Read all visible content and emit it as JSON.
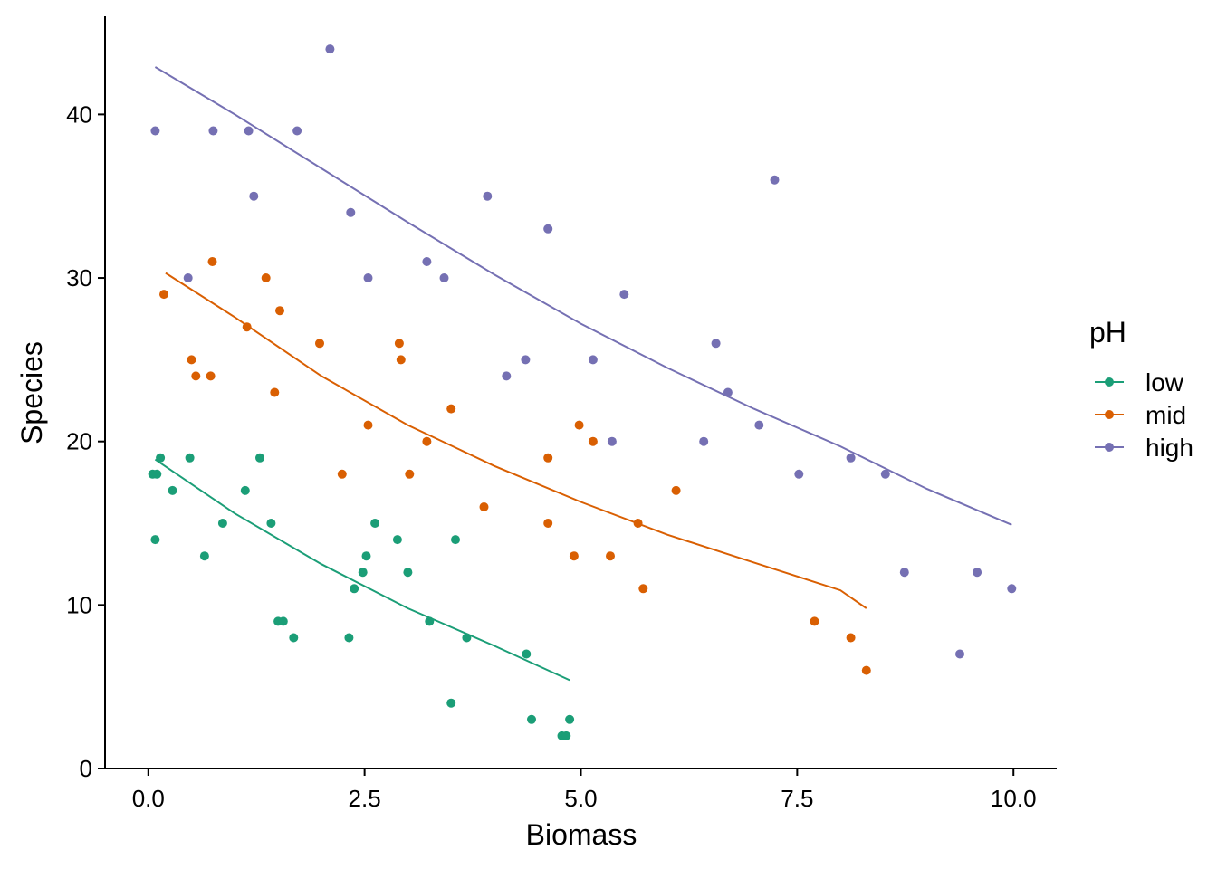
{
  "chart_data": {
    "type": "scatter",
    "xlabel": "Biomass",
    "ylabel": "Species",
    "xlim": [
      -0.5,
      10.5
    ],
    "ylim": [
      0,
      46
    ],
    "xticks": [
      0.0,
      2.5,
      5.0,
      7.5,
      10.0
    ],
    "xtick_labels": [
      "0.0",
      "2.5",
      "5.0",
      "7.5",
      "10.0"
    ],
    "yticks": [
      0,
      10,
      20,
      30,
      40
    ],
    "ytick_labels": [
      "0",
      "10",
      "20",
      "30",
      "40"
    ],
    "grid": false,
    "legend": {
      "title": "pH",
      "placement": "right"
    },
    "series": [
      {
        "name": "low",
        "color": "#1b9e77",
        "points": [
          [
            0.05,
            18
          ],
          [
            0.1,
            18
          ],
          [
            0.08,
            14
          ],
          [
            0.14,
            19
          ],
          [
            0.28,
            17
          ],
          [
            0.48,
            19
          ],
          [
            0.65,
            13
          ],
          [
            0.86,
            15
          ],
          [
            1.12,
            17
          ],
          [
            1.29,
            19
          ],
          [
            1.42,
            15
          ],
          [
            1.5,
            9
          ],
          [
            1.56,
            9
          ],
          [
            1.68,
            8
          ],
          [
            2.32,
            8
          ],
          [
            2.38,
            11
          ],
          [
            2.48,
            12
          ],
          [
            2.52,
            13
          ],
          [
            2.62,
            15
          ],
          [
            2.88,
            14
          ],
          [
            3.0,
            12
          ],
          [
            3.25,
            9
          ],
          [
            3.5,
            4
          ],
          [
            3.55,
            14
          ],
          [
            3.68,
            8
          ],
          [
            4.37,
            7
          ],
          [
            4.43,
            3
          ],
          [
            4.78,
            2
          ],
          [
            4.83,
            2
          ],
          [
            4.87,
            3
          ]
        ],
        "fit": [
          [
            0.08,
            18.9
          ],
          [
            1.0,
            15.6
          ],
          [
            2.0,
            12.5
          ],
          [
            3.0,
            9.8
          ],
          [
            4.0,
            7.5
          ],
          [
            4.87,
            5.4
          ]
        ]
      },
      {
        "name": "mid",
        "color": "#d95f02",
        "points": [
          [
            0.18,
            29
          ],
          [
            0.5,
            25
          ],
          [
            0.55,
            24
          ],
          [
            0.72,
            24
          ],
          [
            0.74,
            31
          ],
          [
            1.14,
            27
          ],
          [
            1.36,
            30
          ],
          [
            1.46,
            23
          ],
          [
            1.52,
            28
          ],
          [
            1.98,
            26
          ],
          [
            2.24,
            18
          ],
          [
            2.54,
            21
          ],
          [
            2.9,
            26
          ],
          [
            2.92,
            25
          ],
          [
            3.02,
            18
          ],
          [
            3.22,
            20
          ],
          [
            3.5,
            22
          ],
          [
            3.88,
            16
          ],
          [
            4.62,
            19
          ],
          [
            4.62,
            15
          ],
          [
            4.92,
            13
          ],
          [
            4.98,
            21
          ],
          [
            5.14,
            20
          ],
          [
            5.34,
            13
          ],
          [
            5.66,
            15
          ],
          [
            5.72,
            11
          ],
          [
            6.1,
            17
          ],
          [
            7.7,
            9
          ],
          [
            8.12,
            8
          ],
          [
            8.3,
            6
          ]
        ],
        "fit": [
          [
            0.2,
            30.3
          ],
          [
            1.0,
            27.6
          ],
          [
            2.0,
            24.0
          ],
          [
            3.0,
            21.0
          ],
          [
            4.0,
            18.5
          ],
          [
            5.0,
            16.3
          ],
          [
            6.0,
            14.3
          ],
          [
            7.0,
            12.6
          ],
          [
            8.0,
            10.9
          ],
          [
            8.3,
            9.8
          ]
        ]
      },
      {
        "name": "high",
        "color": "#7570b3",
        "points": [
          [
            0.08,
            39
          ],
          [
            0.46,
            30
          ],
          [
            0.75,
            39
          ],
          [
            1.16,
            39
          ],
          [
            1.22,
            35
          ],
          [
            1.72,
            39
          ],
          [
            2.1,
            44
          ],
          [
            2.34,
            34
          ],
          [
            2.54,
            30
          ],
          [
            3.22,
            31
          ],
          [
            3.42,
            30
          ],
          [
            3.92,
            35
          ],
          [
            4.14,
            24
          ],
          [
            4.36,
            25
          ],
          [
            4.62,
            33
          ],
          [
            5.14,
            25
          ],
          [
            5.36,
            20
          ],
          [
            5.5,
            29
          ],
          [
            6.42,
            20
          ],
          [
            6.56,
            26
          ],
          [
            6.7,
            23
          ],
          [
            7.06,
            21
          ],
          [
            7.24,
            36
          ],
          [
            7.52,
            18
          ],
          [
            8.12,
            19
          ],
          [
            8.52,
            18
          ],
          [
            8.74,
            12
          ],
          [
            9.38,
            7
          ],
          [
            9.58,
            12
          ],
          [
            9.98,
            11
          ]
        ],
        "fit": [
          [
            0.08,
            42.9
          ],
          [
            1.0,
            40.0
          ],
          [
            2.0,
            36.7
          ],
          [
            3.0,
            33.4
          ],
          [
            4.0,
            30.2
          ],
          [
            5.0,
            27.2
          ],
          [
            6.0,
            24.5
          ],
          [
            7.0,
            22.0
          ],
          [
            8.0,
            19.7
          ],
          [
            9.0,
            17.1
          ],
          [
            9.98,
            14.9
          ]
        ]
      }
    ]
  }
}
